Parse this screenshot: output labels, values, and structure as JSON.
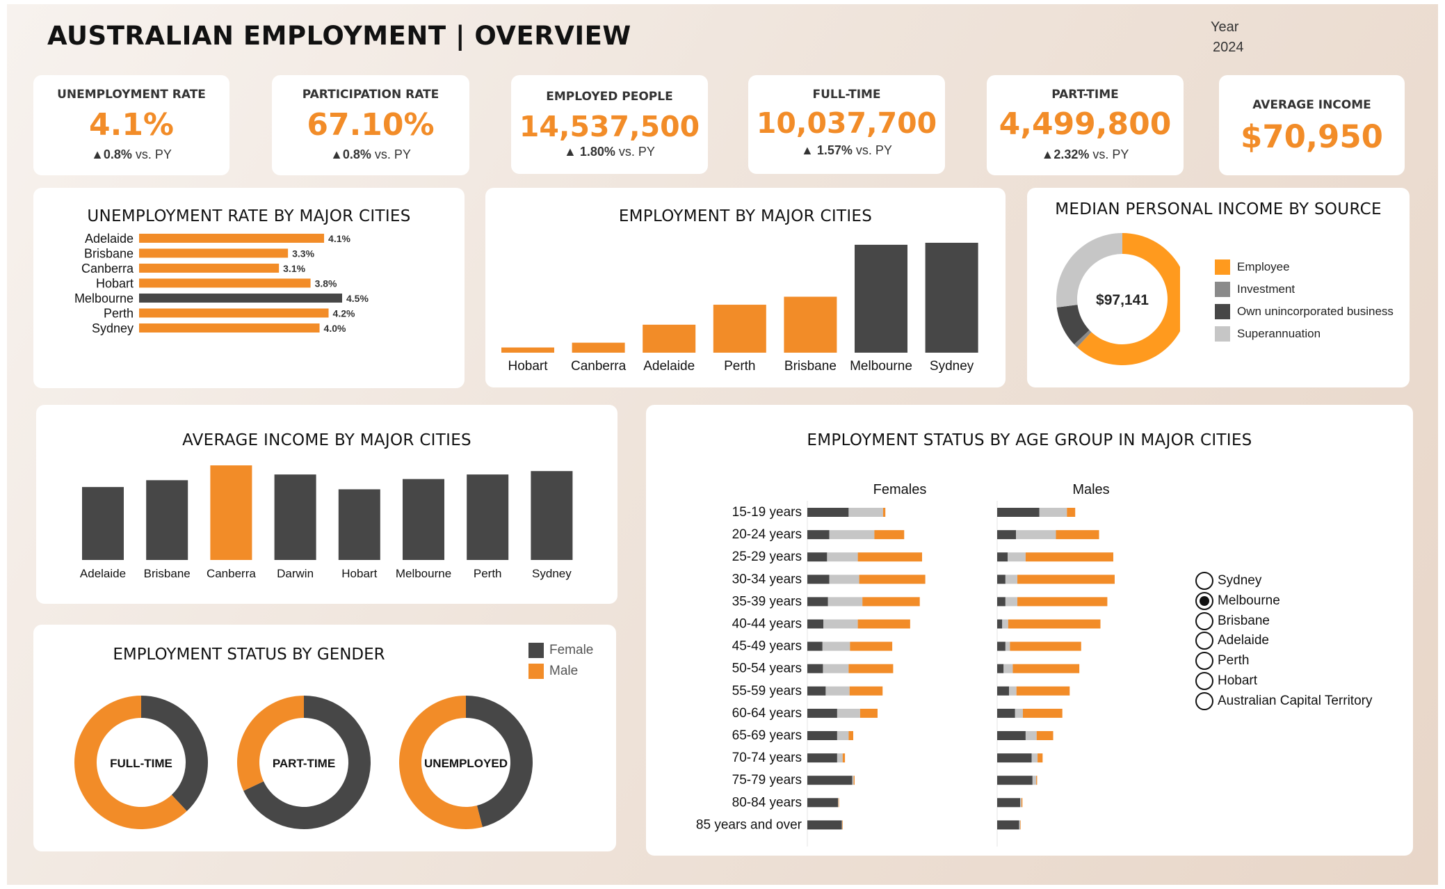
{
  "header": {
    "title": "AUSTRALIAN EMPLOYMENT | OVERVIEW",
    "year_label": "Year",
    "year_value": "2024"
  },
  "colors": {
    "accent": "#f28c28",
    "dark": "#474747",
    "grey": "#8a8a8a",
    "light": "#c6c6c6"
  },
  "kpis": [
    {
      "label": "UNEMPLOYMENT RATE",
      "value": "4.1%",
      "change_arrow": "▲",
      "change_value": "0.8%",
      "change_suffix": " vs. PY"
    },
    {
      "label": "PARTICIPATION RATE",
      "value": "67.10%",
      "change_arrow": "▲",
      "change_value": "0.8%",
      "change_suffix": " vs. PY"
    },
    {
      "label": "EMPLOYED PEOPLE",
      "value": "14,537,500",
      "change_arrow": "▲ ",
      "change_value": "1.80%",
      "change_suffix": " vs. PY"
    },
    {
      "label": "FULL-TIME",
      "value": "10,037,700",
      "change_arrow": "▲ ",
      "change_value": "1.57%",
      "change_suffix": " vs. PY"
    },
    {
      "label": "PART-TIME",
      "value": "4,499,800",
      "change_arrow": "▲",
      "change_value": "2.32%",
      "change_suffix": " vs. PY"
    },
    {
      "label": "AVERAGE INCOME",
      "value": "$70,950"
    }
  ],
  "chart_data": [
    {
      "id": "unemp_city",
      "type": "bar",
      "orientation": "horizontal",
      "title": "UNEMPLOYMENT RATE BY MAJOR CITIES",
      "categories": [
        "Adelaide",
        "Brisbane",
        "Canberra",
        "Hobart",
        "Melbourne",
        "Perth",
        "Sydney"
      ],
      "values": [
        4.1,
        3.3,
        3.1,
        3.8,
        4.5,
        4.2,
        4.0
      ],
      "value_labels": [
        "4.1%",
        "3.3%",
        "3.1%",
        "3.8%",
        "4.5%",
        "4.2%",
        "4.0%"
      ],
      "highlight": "Melbourne"
    },
    {
      "id": "emp_city",
      "type": "bar",
      "title": "EMPLOYMENT BY MAJOR CITIES",
      "categories": [
        "Hobart",
        "Canberra",
        "Adelaide",
        "Perth",
        "Brisbane",
        "Melbourne",
        "Sydney"
      ],
      "values": [
        0.13,
        0.25,
        0.7,
        1.2,
        1.4,
        2.7,
        2.75
      ],
      "highlight": [
        "Melbourne",
        "Sydney"
      ]
    },
    {
      "id": "income_source",
      "type": "pie",
      "title": "MEDIAN PERSONAL INCOME BY SOURCE",
      "center_label": "$97,141",
      "labels": [
        "Employee",
        "Investment",
        "Own unincorporated business",
        "Superannuation"
      ],
      "values": [
        62,
        1,
        10,
        27
      ],
      "colors": [
        "#ff9a1e",
        "#8a8a8a",
        "#474747",
        "#c6c6c6"
      ]
    },
    {
      "id": "avg_income_city",
      "type": "bar",
      "title": "AVERAGE INCOME BY MAJOR CITIES",
      "categories": [
        "Adelaide",
        "Brisbane",
        "Canberra",
        "Darwin",
        "Hobart",
        "Melbourne",
        "Perth",
        "Sydney"
      ],
      "values": [
        64000,
        70000,
        83000,
        75000,
        62000,
        71000,
        75000,
        78000
      ],
      "highlight": "Canberra"
    },
    {
      "id": "gender",
      "type": "pie",
      "title": "EMPLOYMENT STATUS BY GENDER",
      "legend": [
        "Female",
        "Male"
      ],
      "charts": [
        {
          "label": "FULL-TIME",
          "female": 38,
          "male": 62
        },
        {
          "label": "PART-TIME",
          "female": 68,
          "male": 32
        },
        {
          "label": "UNEMPLOYED",
          "female": 46,
          "male": 54
        }
      ]
    },
    {
      "id": "age_group",
      "type": "bar",
      "orientation": "horizontal",
      "stacked": true,
      "title": "EMPLOYMENT STATUS BY AGE GROUP IN MAJOR CITIES",
      "panels": [
        "Females",
        "Males"
      ],
      "categories": [
        "15-19 years",
        "20-24 years",
        "25-29 years",
        "30-34 years",
        "35-39 years",
        "40-44 years",
        "45-49 years",
        "50-54 years",
        "55-59 years",
        "60-64 years",
        "65-69 years",
        "70-74 years",
        "75-79 years",
        "80-84 years",
        "85 years and over"
      ],
      "series_colors": [
        "#474747",
        "#c6c6c6",
        "#f28c28"
      ],
      "females": [
        [
          9,
          7.5,
          0.5
        ],
        [
          4.8,
          9.8,
          6.5
        ],
        [
          4.3,
          6.7,
          14
        ],
        [
          4.8,
          6.5,
          14.4
        ],
        [
          4.5,
          7.5,
          12.5
        ],
        [
          3.5,
          7.5,
          11.4
        ],
        [
          3.3,
          6,
          9.2
        ],
        [
          3.4,
          5.6,
          9.7
        ],
        [
          4,
          5.2,
          7.2
        ],
        [
          6.5,
          5,
          3.8
        ],
        [
          6.5,
          2.5,
          1
        ],
        [
          6.5,
          1.2,
          0.5
        ],
        [
          9.8,
          0.3,
          0.2
        ],
        [
          6.7,
          0.1,
          0.1
        ],
        [
          7.5,
          0.1,
          0.1
        ]
      ],
      "males": [
        [
          9.2,
          6,
          1.8
        ],
        [
          4.1,
          8.7,
          9.4
        ],
        [
          2.3,
          3.9,
          19.1
        ],
        [
          1.8,
          2.6,
          21.2
        ],
        [
          1.8,
          2.6,
          19.6
        ],
        [
          1.1,
          1.3,
          20.1
        ],
        [
          1.8,
          1,
          15.5
        ],
        [
          1.4,
          2,
          14.5
        ],
        [
          2.6,
          1.6,
          11.6
        ],
        [
          3.9,
          1.7,
          8.6
        ],
        [
          6.2,
          2.4,
          3.6
        ],
        [
          7.5,
          1.3,
          1.1
        ],
        [
          7.7,
          0.8,
          0.2
        ],
        [
          5,
          0.3,
          0.2
        ],
        [
          4.8,
          0.2,
          0.1
        ]
      ]
    }
  ],
  "city_filter": {
    "options": [
      "Sydney",
      "Melbourne",
      "Brisbane",
      "Adelaide",
      "Perth",
      "Hobart",
      "Australian Capital Territory"
    ],
    "selected": "Melbourne"
  }
}
